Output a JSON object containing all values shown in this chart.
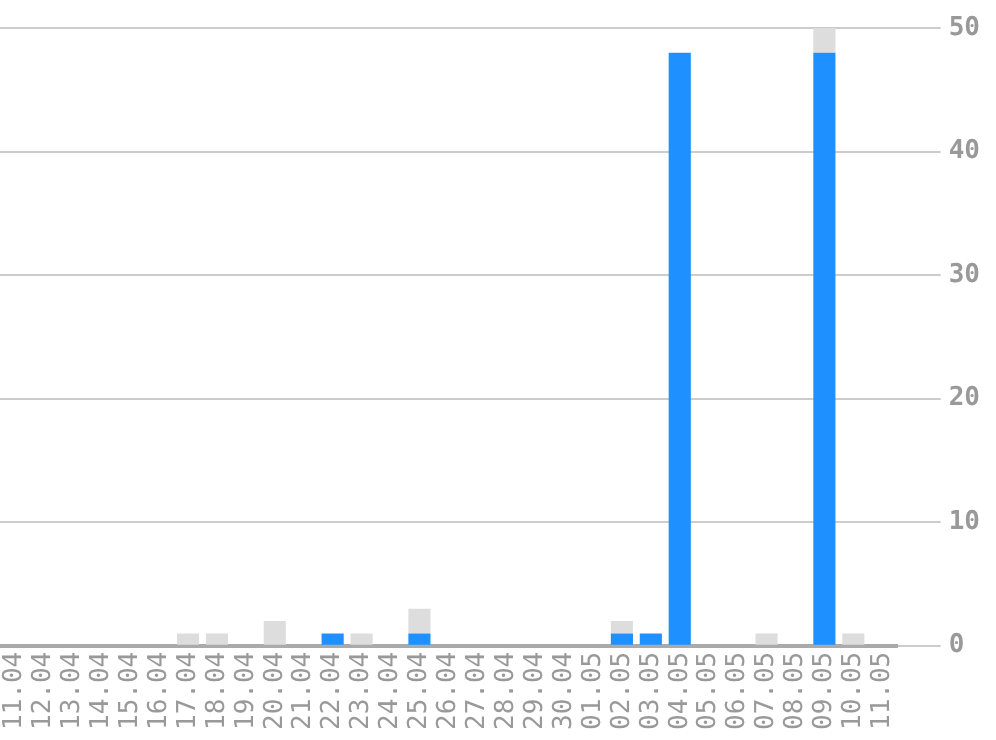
{
  "chart_data": {
    "type": "bar",
    "stacked": true,
    "categories": [
      "11.04",
      "12.04",
      "13.04",
      "14.04",
      "15.04",
      "16.04",
      "17.04",
      "18.04",
      "19.04",
      "20.04",
      "21.04",
      "22.04",
      "23.04",
      "24.04",
      "25.04",
      "26.04",
      "27.04",
      "28.04",
      "29.04",
      "30.04",
      "01.05",
      "02.05",
      "03.05",
      "04.05",
      "05.05",
      "06.05",
      "07.05",
      "08.05",
      "09.05",
      "10.05",
      "11.05"
    ],
    "series": [
      {
        "color": "#1e90ff",
        "values": [
          0,
          0,
          0,
          0,
          0,
          0,
          0,
          0,
          0,
          0,
          0,
          1,
          0,
          0,
          1,
          0,
          0,
          0,
          0,
          0,
          0,
          1,
          1,
          48,
          0,
          0,
          0,
          0,
          48,
          0,
          0
        ]
      },
      {
        "color": "#dddddd",
        "values": [
          0,
          0,
          0,
          0,
          0,
          0,
          1,
          1,
          0,
          2,
          0,
          0,
          1,
          0,
          2,
          0,
          0,
          0,
          0,
          0,
          0,
          1,
          0,
          0,
          0,
          0,
          1,
          0,
          2,
          1,
          0
        ]
      }
    ],
    "ylim": [
      0,
      50
    ],
    "yticks": [
      0,
      10,
      20,
      30,
      40,
      50
    ],
    "grid": "y"
  }
}
